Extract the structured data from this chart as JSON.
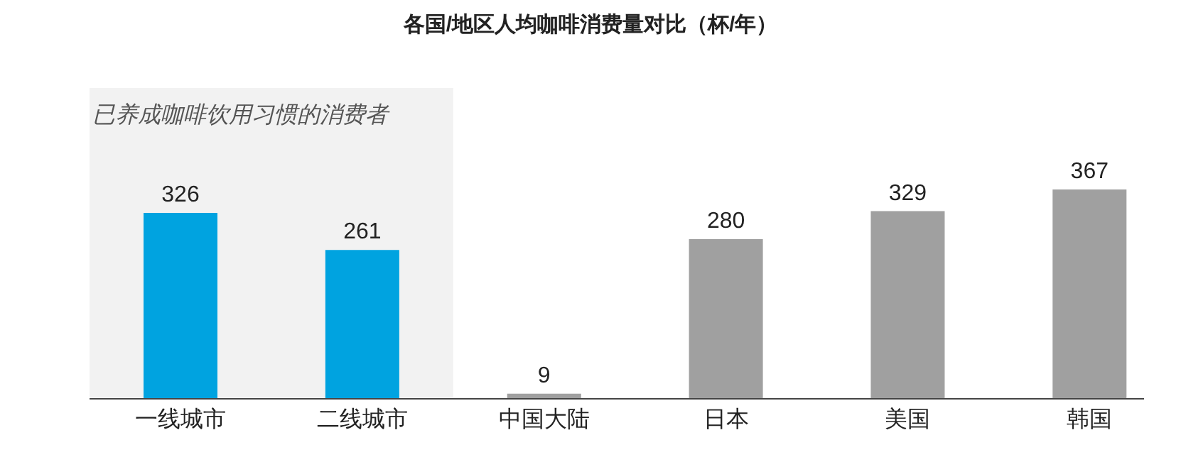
{
  "chart_data": {
    "type": "bar",
    "title": "各国/地区人均咖啡消费量对比（杯/年）",
    "categories": [
      "一线城市",
      "二线城市",
      "中国大陆",
      "日本",
      "美国",
      "韩国"
    ],
    "values": [
      326,
      261,
      9,
      280,
      329,
      367
    ],
    "colors": [
      "#00a3e0",
      "#00a3e0",
      "#a0a0a0",
      "#a0a0a0",
      "#a0a0a0",
      "#a0a0a0"
    ],
    "data_labels": true,
    "grid": false,
    "legend": false,
    "tick_labels": "x",
    "bands": [
      {
        "axis": "x",
        "from": "一线城市",
        "to": "二线城市",
        "label": "已养成咖啡饮用习惯的消费者",
        "color": "#f2f2f2"
      }
    ]
  }
}
